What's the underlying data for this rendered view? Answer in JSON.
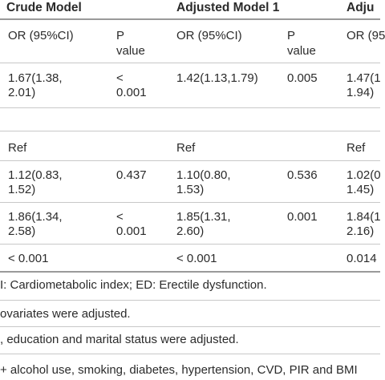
{
  "header": {
    "crude": "Crude Model",
    "adj1": "Adjusted Model 1",
    "adj2": "Adju"
  },
  "subheader": {
    "or1": "OR (95%CI)",
    "p1_l1": "P",
    "p1_l2": "value",
    "or2": "OR (95%CI)",
    "p2_l1": "P",
    "p2_l2": "value",
    "or3": "OR (95"
  },
  "rows": [
    {
      "c1_l1": "1.67(1.38,",
      "c1_l2": "2.01)",
      "c2_l1": "<",
      "c2_l2": "0.001",
      "c3_l1": "1.42(1.13,1.79)",
      "c3_l2": "",
      "c4_l1": "0.005",
      "c4_l2": "",
      "c5_l1": "1.47(1",
      "c5_l2": "1.94)"
    },
    {
      "c1_l1": "Ref",
      "c1_l2": "",
      "c2_l1": "",
      "c2_l2": "",
      "c3_l1": "Ref",
      "c3_l2": "",
      "c4_l1": "",
      "c4_l2": "",
      "c5_l1": "Ref",
      "c5_l2": ""
    },
    {
      "c1_l1": "1.12(0.83,",
      "c1_l2": "1.52)",
      "c2_l1": "0.437",
      "c2_l2": "",
      "c3_l1": "1.10(0.80,",
      "c3_l2": "1.53)",
      "c4_l1": "0.536",
      "c4_l2": "",
      "c5_l1": "1.02(0",
      "c5_l2": "1.45)"
    },
    {
      "c1_l1": "1.86(1.34,",
      "c1_l2": "2.58)",
      "c2_l1": "<",
      "c2_l2": "0.001",
      "c3_l1": "1.85(1.31,",
      "c3_l2": "2.60)",
      "c4_l1": "0.001",
      "c4_l2": "",
      "c5_l1": "1.84(1",
      "c5_l2": "2.16)"
    },
    {
      "c1_l1": "< 0.001",
      "c1_l2": "",
      "c2_l1": "",
      "c2_l2": "",
      "c3_l1": "< 0.001",
      "c3_l2": "",
      "c4_l1": "",
      "c4_l2": "",
      "c5_l1": "0.014",
      "c5_l2": ""
    }
  ],
  "footnotes": [
    "I: Cardiometabolic index; ED: Erectile dysfunction.",
    "ovariates were adjusted.",
    ", education and marital status were adjusted.",
    "+ alcohol use, smoking, diabetes, hypertension, CVD, PIR and BMI"
  ]
}
